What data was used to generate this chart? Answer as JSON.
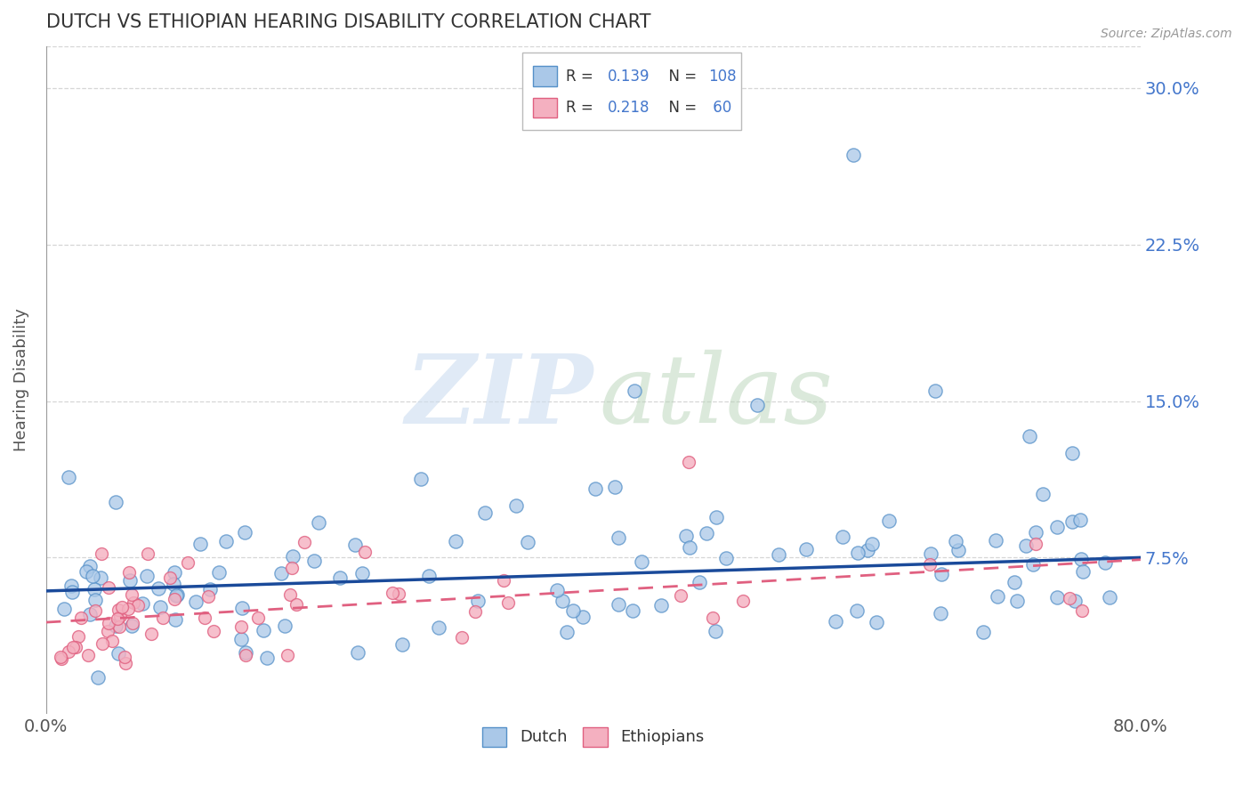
{
  "title": "DUTCH VS ETHIOPIAN HEARING DISABILITY CORRELATION CHART",
  "source": "Source: ZipAtlas.com",
  "ylabel": "Hearing Disability",
  "xlim": [
    0.0,
    0.8
  ],
  "ylim": [
    0.0,
    0.32
  ],
  "xticks": [
    0.0,
    0.2,
    0.4,
    0.6,
    0.8
  ],
  "xticklabels": [
    "0.0%",
    "",
    "",
    "",
    "80.0%"
  ],
  "yticks": [
    0.075,
    0.15,
    0.225,
    0.3
  ],
  "yticklabels": [
    "7.5%",
    "15.0%",
    "22.5%",
    "30.0%"
  ],
  "dutch_color": "#aac8e8",
  "dutch_edge": "#5590c8",
  "ethiopian_color": "#f4b0c0",
  "ethiopian_edge": "#e06080",
  "dutch_line_color": "#1a4a9a",
  "ethiopian_line_color": "#e06080",
  "background_color": "#ffffff",
  "grid_color": "#cccccc",
  "title_color": "#333333",
  "ytick_color": "#4477cc",
  "xtick_color": "#555555",
  "ylabel_color": "#555555",
  "dutch_R": 0.139,
  "dutch_N": 108,
  "ethiopian_R": 0.218,
  "ethiopian_N": 60,
  "dutch_line_y0": 0.059,
  "dutch_line_y1": 0.075,
  "ethiopian_line_y0": 0.044,
  "ethiopian_line_y1": 0.074
}
